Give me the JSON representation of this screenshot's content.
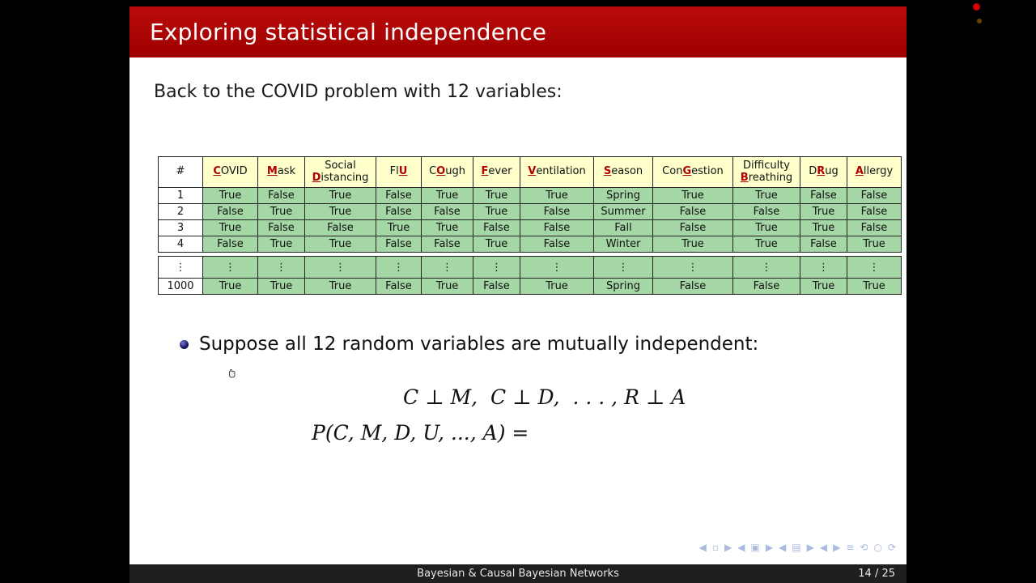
{
  "slide": {
    "title": "Exploring statistical independence",
    "intro": "Back to the COVID problem with 12 variables:",
    "bullet_text": "Suppose all 12 random variables are mutually independent:",
    "math_line1": "C ⊥ M,  C ⊥ D,  . . . , R ⊥ A",
    "math_line2": "P(C, M, D, U, ..., A) ="
  },
  "table": {
    "headers": [
      {
        "lines": [
          [
            {
              "t": "#",
              "h": false
            }
          ]
        ]
      },
      {
        "lines": [
          [
            {
              "t": "C",
              "h": true
            },
            {
              "t": "OVID",
              "h": false
            }
          ]
        ]
      },
      {
        "lines": [
          [
            {
              "t": "M",
              "h": true
            },
            {
              "t": "ask",
              "h": false
            }
          ]
        ]
      },
      {
        "lines": [
          [
            {
              "t": "Social",
              "h": false
            }
          ],
          [
            {
              "t": "D",
              "h": true
            },
            {
              "t": "istancing",
              "h": false
            }
          ]
        ]
      },
      {
        "lines": [
          [
            {
              "t": "Fl",
              "h": false
            },
            {
              "t": "U",
              "h": true
            }
          ]
        ]
      },
      {
        "lines": [
          [
            {
              "t": "C",
              "h": false
            },
            {
              "t": "O",
              "h": true
            },
            {
              "t": "ugh",
              "h": false
            }
          ]
        ]
      },
      {
        "lines": [
          [
            {
              "t": "F",
              "h": true
            },
            {
              "t": "ever",
              "h": false
            }
          ]
        ]
      },
      {
        "lines": [
          [
            {
              "t": "V",
              "h": true
            },
            {
              "t": "entilation",
              "h": false
            }
          ]
        ]
      },
      {
        "lines": [
          [
            {
              "t": "S",
              "h": true
            },
            {
              "t": "eason",
              "h": false
            }
          ]
        ]
      },
      {
        "lines": [
          [
            {
              "t": "Con",
              "h": false
            },
            {
              "t": "G",
              "h": true
            },
            {
              "t": "estion",
              "h": false
            }
          ]
        ]
      },
      {
        "lines": [
          [
            {
              "t": "Difficulty",
              "h": false
            }
          ],
          [
            {
              "t": "B",
              "h": true
            },
            {
              "t": "reathing",
              "h": false
            }
          ]
        ]
      },
      {
        "lines": [
          [
            {
              "t": "D",
              "h": false
            },
            {
              "t": "R",
              "h": true
            },
            {
              "t": "ug",
              "h": false
            }
          ]
        ]
      },
      {
        "lines": [
          [
            {
              "t": "A",
              "h": true
            },
            {
              "t": "llergy",
              "h": false
            }
          ]
        ]
      }
    ],
    "rows": [
      {
        "label": "1",
        "cells": [
          "True",
          "False",
          "True",
          "False",
          "True",
          "True",
          "True",
          "Spring",
          "True",
          "True",
          "False",
          "False"
        ]
      },
      {
        "label": "2",
        "cells": [
          "False",
          "True",
          "True",
          "False",
          "False",
          "True",
          "False",
          "Summer",
          "False",
          "False",
          "True",
          "False"
        ]
      },
      {
        "label": "3",
        "cells": [
          "True",
          "False",
          "False",
          "True",
          "True",
          "False",
          "False",
          "Fall",
          "False",
          "True",
          "True",
          "False"
        ]
      },
      {
        "label": "4",
        "cells": [
          "False",
          "True",
          "True",
          "False",
          "False",
          "True",
          "False",
          "Winter",
          "True",
          "True",
          "False",
          "True"
        ]
      }
    ],
    "rows_tail": [
      {
        "label": "⋮",
        "cells": [
          "⋮",
          "⋮",
          "⋮",
          "⋮",
          "⋮",
          "⋮",
          "⋮",
          "⋮",
          "⋮",
          "⋮",
          "⋮",
          "⋮"
        ]
      },
      {
        "label": "1000",
        "cells": [
          "True",
          "True",
          "True",
          "False",
          "True",
          "False",
          "True",
          "Spring",
          "False",
          "False",
          "True",
          "True"
        ]
      }
    ]
  },
  "nav_symbols": [
    "◀",
    "▫",
    "▶",
    "◀",
    "▣",
    "▶",
    "◀",
    "▤",
    "▶",
    "◀",
    "▶",
    "≡",
    "⟲",
    "○",
    "⟳"
  ],
  "footer": {
    "title": "Bayesian & Causal Bayesian Networks",
    "page": "14 / 25"
  },
  "colors": {
    "title_bar": "#aa0404",
    "table_header_bg": "#ffffcc",
    "table_body_bg": "#a5d6a5",
    "highlight_letter": "#b30000",
    "footer_bg": "#1f1f1f"
  }
}
